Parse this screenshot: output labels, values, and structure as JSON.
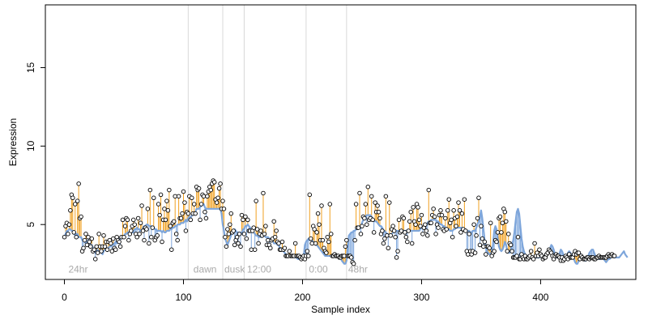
{
  "chart_data": {
    "type": "scatter",
    "title": "",
    "xlabel": "Sample index",
    "ylabel": "Expression",
    "xlim": [
      -16,
      480
    ],
    "ylim": [
      1.5,
      19
    ],
    "xticks": [
      0,
      100,
      200,
      300,
      400
    ],
    "yticks": [
      5,
      10,
      15
    ],
    "grid": false,
    "colors": {
      "fit_line": "#7ea6db",
      "residual_up": "#f0a020",
      "residual_down": "#7ea6db",
      "point_stroke": "#000000",
      "point_fill": "#ffffff",
      "vline": "#d9d9d9",
      "annotation": "#aaaaaa"
    },
    "vlines": [
      104,
      133,
      151,
      203,
      237
    ],
    "annotations": [
      {
        "x": 2,
        "y": 1.95,
        "text": "24hr"
      },
      {
        "x": 107,
        "y": 1.95,
        "text": "dawn"
      },
      {
        "x": 133,
        "y": 1.95,
        "text": "dusk"
      },
      {
        "x": 152,
        "y": 1.95,
        "text": "12:00"
      },
      {
        "x": 204,
        "y": 1.95,
        "text": "0:00"
      },
      {
        "x": 237,
        "y": 1.95,
        "text": "48hr"
      }
    ],
    "fitted": [
      4.2,
      4.4,
      4.6,
      4.6,
      4.7,
      4.7,
      4.6,
      4.6,
      4.5,
      4.3,
      4.4,
      4.4,
      4.2,
      4.2,
      4.2,
      4.0,
      4.0,
      3.9,
      3.8,
      3.9,
      4.0,
      4.0,
      3.7,
      3.7,
      3.5,
      3.3,
      3.2,
      3.3,
      3.4,
      3.2,
      3.3,
      3.3,
      3.1,
      3.3,
      3.4,
      3.5,
      3.3,
      3.5,
      3.6,
      3.6,
      3.8,
      3.7,
      3.8,
      3.9,
      3.8,
      3.9,
      4.1,
      4.1,
      4.1,
      4.2,
      4.2,
      4.4,
      4.4,
      4.5,
      4.5,
      4.4,
      4.5,
      4.5,
      4.5,
      4.7,
      4.7,
      4.8,
      4.7,
      4.7,
      4.6,
      4.6,
      4.8,
      4.9,
      4.9,
      5.0,
      5.0,
      4.9,
      4.9,
      4.9,
      4.8,
      4.8,
      4.7,
      4.7,
      4.6,
      4.6,
      4.6,
      4.6,
      4.5,
      4.6,
      4.5,
      4.5,
      4.6,
      4.6,
      4.6,
      4.7,
      4.7,
      4.8,
      4.8,
      4.9,
      4.9,
      5.0,
      5.0,
      5.0,
      5.1,
      5.1,
      5.1,
      5.2,
      5.3,
      5.2,
      5.4,
      5.5,
      5.4,
      5.6,
      5.6,
      5.7,
      5.8,
      6.0,
      6.0,
      6.0,
      6.1,
      6.2,
      6.3,
      6.3,
      6.1,
      6.0,
      6.0,
      6.0,
      6.0,
      6.0,
      6.0,
      6.0,
      6.0,
      6.0,
      6.0,
      6.0,
      6.0,
      6.0,
      5.7,
      5.0,
      4.6,
      4.1,
      3.9,
      3.7,
      3.9,
      4.1,
      4.3,
      4.5,
      4.5,
      4.7,
      4.6,
      4.5,
      4.5,
      4.4,
      4.5,
      4.4,
      4.7,
      4.7,
      4.9,
      4.9,
      5.0,
      4.9,
      4.8,
      4.6,
      4.6,
      4.5,
      4.4,
      4.3,
      4.3,
      4.2,
      4.2,
      4.2,
      4.2,
      4.3,
      4.3,
      4.2,
      4.2,
      4.2,
      4.1,
      4.1,
      4.0,
      4.0,
      3.8,
      3.8,
      3.8,
      3.7,
      3.7,
      3.5,
      3.5,
      3.4,
      3.3,
      3.2,
      3.1,
      3.0,
      3.0,
      3.0,
      3.0,
      3.0,
      3.0,
      3.0,
      2.9,
      2.9,
      2.8,
      2.8,
      2.8,
      2.8,
      2.8,
      3.0,
      3.7,
      3.9,
      4.0,
      4.1,
      4.0,
      4.0,
      4.0,
      3.9,
      3.8,
      3.7,
      3.7,
      3.6,
      3.5,
      3.4,
      3.3,
      3.2,
      3.1,
      3.0,
      3.0,
      3.0,
      3.0,
      3.0,
      3.0,
      3.0,
      3.0,
      3.0,
      3.0,
      3.0,
      3.0,
      3.0,
      2.9,
      2.7,
      2.6,
      2.5,
      2.5,
      2.7,
      3.6,
      4.3,
      4.4,
      4.5,
      4.5,
      4.6,
      4.6,
      4.7,
      4.7,
      4.8,
      4.9,
      4.9,
      5.1,
      5.3,
      5.4,
      5.5,
      5.6,
      5.6,
      5.6,
      5.6,
      5.5,
      5.4,
      5.3,
      5.2,
      5.2,
      5.1,
      5.0,
      4.9,
      4.9,
      4.8,
      4.6,
      4.6,
      4.5,
      4.4,
      4.4,
      4.3,
      4.4,
      4.4,
      4.5,
      4.5,
      4.6,
      4.6,
      4.6,
      4.6,
      4.6,
      4.6,
      4.6,
      4.6,
      4.6,
      4.6,
      4.6,
      4.6,
      4.6,
      4.6,
      4.6,
      4.6,
      4.6,
      4.6,
      4.6,
      4.6,
      4.6,
      4.7,
      4.8,
      4.8,
      4.9,
      4.9,
      5.0,
      5.1,
      5.2,
      5.2,
      5.3,
      5.3,
      5.3,
      5.3,
      5.3,
      5.2,
      5.2,
      5.1,
      5.0,
      5.0,
      4.9,
      4.9,
      4.8,
      4.8,
      4.7,
      4.7,
      4.6,
      4.6,
      4.6,
      4.7,
      4.7,
      4.8,
      4.8,
      4.8,
      4.8,
      4.8,
      4.8,
      4.7,
      4.7,
      4.7,
      4.6,
      4.6,
      4.6,
      4.5,
      4.5,
      4.6,
      4.6,
      4.6,
      4.8,
      5.0,
      5.2,
      5.5,
      5.9,
      5.4,
      4.7,
      4.0,
      3.6,
      3.3,
      3.2,
      3.1,
      3.1,
      3.3,
      3.7,
      4.6,
      4.9,
      4.7,
      4.1,
      3.6,
      3.4,
      3.3,
      3.4,
      3.6,
      3.9,
      3.7,
      3.3,
      3.2,
      3.2,
      3.4,
      3.7,
      4.0,
      4.5,
      5.2,
      5.8,
      6.0,
      5.7,
      4.9,
      4.1,
      3.6,
      3.3,
      3.1,
      3.0,
      3.0,
      2.9,
      2.9,
      2.9,
      2.9,
      2.9,
      2.9,
      2.9,
      2.9,
      2.9,
      2.9,
      3.0,
      3.0,
      3.0,
      3.0,
      3.0,
      3.1,
      3.2,
      3.3,
      3.5,
      3.7,
      3.6,
      3.4,
      3.1,
      2.9,
      2.9,
      3.0,
      3.2,
      3.4,
      3.3,
      3.1,
      2.9,
      2.9,
      3.0,
      3.2,
      3.3,
      3.2,
      3.0,
      2.9,
      2.8,
      2.6,
      2.5,
      2.5,
      2.7,
      2.9,
      3.1,
      3.0,
      2.8,
      2.7,
      2.7,
      2.8,
      3.0,
      3.2,
      3.3,
      3.4,
      3.4,
      3.2,
      3.0,
      2.9,
      2.8,
      2.8,
      2.8,
      2.9,
      2.9,
      2.8,
      2.7,
      2.6,
      2.7,
      2.8,
      2.8,
      2.9,
      3.0,
      3.0,
      2.9,
      2.9,
      2.9,
      2.9,
      2.9,
      3.0,
      3.1,
      3.2,
      3.3,
      3.1,
      3.0,
      2.9
    ],
    "observed": [
      4.2,
      4.9,
      5.1,
      4.4,
      5.0,
      5.9,
      6.9,
      6.7,
      4.5,
      6.3,
      4.2,
      6.5,
      7.6,
      5.4,
      5.5,
      3.3,
      3.5,
      4.0,
      4.4,
      3.7,
      4.2,
      3.9,
      3.6,
      4.1,
      3.3,
      3.4,
      2.8,
      3.6,
      3.2,
      4.4,
      3.6,
      3.3,
      3.6,
      4.3,
      3.6,
      3.9,
      3.4,
      3.9,
      4.0,
      3.8,
      3.3,
      4.1,
      3.5,
      3.4,
      4.2,
      4.0,
      3.9,
      3.6,
      4.2,
      5.3,
      4.2,
      4.9,
      5.4,
      5.3,
      4.0,
      4.4,
      4.6,
      4.9,
      5.3,
      5.0,
      4.4,
      4.2,
      5.4,
      4.4,
      5.1,
      6.2,
      4.6,
      4.0,
      4.8,
      4.7,
      6.0,
      3.8,
      7.2,
      4.2,
      4.8,
      6.7,
      4.0,
      4.2,
      4.3,
      6.3,
      5.6,
      6.9,
      3.9,
      5.3,
      6.0,
      5.3,
      6.5,
      5.9,
      7.2,
      4.9,
      3.4,
      5.1,
      5.2,
      6.8,
      4.4,
      4.0,
      6.8,
      5.4,
      5.4,
      5.7,
      7.1,
      6.4,
      4.6,
      5.8,
      5.7,
      6.8,
      5.3,
      6.7,
      5.7,
      6.3,
      5.7,
      7.4,
      7.2,
      7.3,
      5.3,
      6.3,
      6.9,
      6.8,
      5.8,
      5.4,
      6.8,
      7.1,
      7.4,
      7.2,
      7.6,
      7.8,
      7.7,
      6.6,
      6.4,
      6.7,
      7.3,
      7.6,
      6.0,
      6.5,
      6.0,
      4.2,
      3.6,
      4.7,
      4.4,
      5.0,
      5.7,
      4.5,
      4.6,
      3.7,
      4.0,
      4.2,
      3.8,
      4.4,
      3.6,
      5.6,
      5.3,
      4.4,
      5.5,
      4.1,
      5.3,
      4.6,
      4.6,
      3.4,
      4.6,
      4.8,
      3.4,
      6.5,
      4.7,
      3.8,
      4.4,
      4.6,
      4.3,
      7.0,
      4.4,
      4.9,
      3.7,
      4.0,
      3.7,
      3.5,
      4.0,
      4.1,
      5.2,
      4.2,
      4.6,
      3.9,
      3.8,
      3.4,
      3.4,
      3.9,
      3.4,
      3.5,
      3.0,
      3.0,
      3.0,
      3.3,
      3.0,
      3.0,
      3.0,
      3.0,
      3.8,
      3.0,
      3.0,
      3.0,
      2.9,
      2.8,
      2.9,
      3.0,
      2.8,
      3.0,
      3.3,
      3.0,
      6.9,
      4.1,
      3.8,
      4.9,
      4.7,
      3.8,
      4.5,
      5.7,
      5.0,
      4.0,
      6.2,
      4.0,
      3.5,
      3.3,
      3.2,
      4.2,
      3.9,
      6.3,
      4.4,
      3.0,
      3.0,
      3.1,
      3.0,
      3.0,
      3.0,
      2.9,
      2.9,
      3.0,
      3.0,
      3.0,
      3.6,
      4.0,
      3.0,
      3.0,
      3.0,
      2.9,
      2.6,
      2.5,
      4.0,
      6.3,
      4.8,
      4.8,
      7.0,
      4.4,
      4.9,
      5.5,
      5.4,
      6.3,
      5.0,
      7.4,
      5.3,
      5.4,
      6.8,
      5.3,
      4.5,
      6.4,
      5.8,
      6.2,
      5.8,
      5.4,
      4.4,
      4.6,
      3.8,
      4.1,
      6.8,
      4.3,
      3.5,
      6.4,
      4.3,
      4.7,
      4.9,
      4.6,
      4.2,
      2.9,
      3.3,
      5.3,
      4.5,
      4.6,
      5.5,
      5.4,
      4.5,
      4.2,
      3.9,
      4.6,
      5.2,
      5.8,
      3.8,
      6.1,
      5.2,
      5.0,
      6.3,
      6.1,
      5.3,
      4.9,
      5.6,
      4.4,
      4.8,
      5.0,
      4.6,
      4.3,
      7.2,
      5.1,
      5.1,
      5.6,
      6.0,
      5.5,
      4.4,
      5.0,
      4.8,
      5.6,
      5.9,
      5.6,
      4.7,
      4.6,
      5.4,
      4.7,
      5.9,
      6.6,
      5.1,
      5.3,
      4.2,
      5.9,
      5.4,
      4.9,
      5.5,
      6.4,
      5.9,
      4.5,
      5.7,
      4.7,
      6.6,
      4.6,
      3.3,
      3.1,
      4.4,
      3.3,
      3.1,
      3.3,
      5.0,
      3.2,
      4.3,
      5.4,
      6.7,
      3.7,
      4.9,
      4.1,
      3.6,
      3.9,
      3.1,
      3.6,
      3.6,
      3.5,
      5.1,
      3.0,
      3.2,
      3.3,
      4.0,
      3.9,
      4.5,
      5.4,
      5.5,
      4.5,
      5.1,
      6.0,
      5.8,
      5.2,
      3.3,
      4.4,
      3.8,
      3.7,
      3.3,
      2.9,
      2.9,
      2.9,
      3.0,
      4.2,
      2.8,
      2.8,
      3.1,
      2.9,
      2.8,
      3.0,
      2.8,
      2.8,
      2.9,
      3.0,
      3.3,
      2.9,
      2.8,
      3.8,
      3.0,
      3.2,
      3.0,
      3.4,
      3.1,
      3.0,
      2.8,
      2.9,
      2.9,
      3.1,
      3.2,
      3.4,
      3.3,
      3.2,
      3.0,
      2.8,
      3.0,
      3.1,
      3.0,
      3.0,
      2.9,
      2.7,
      2.9,
      2.7,
      2.8,
      3.0,
      2.9,
      2.8,
      3.1,
      2.9,
      2.9,
      2.9,
      3.1,
      3.3,
      3.1,
      3.2,
      3.2,
      2.8,
      3.0,
      2.9,
      2.8,
      2.8,
      2.8,
      2.9,
      2.9,
      2.8,
      2.9,
      2.9,
      2.9,
      2.8,
      2.8,
      2.9,
      2.9,
      3.0,
      2.9,
      2.9,
      2.9,
      2.9,
      2.9,
      2.9,
      3.0,
      3.1,
      3.0,
      3.0,
      3.1,
      3.0,
      3.0
    ]
  }
}
